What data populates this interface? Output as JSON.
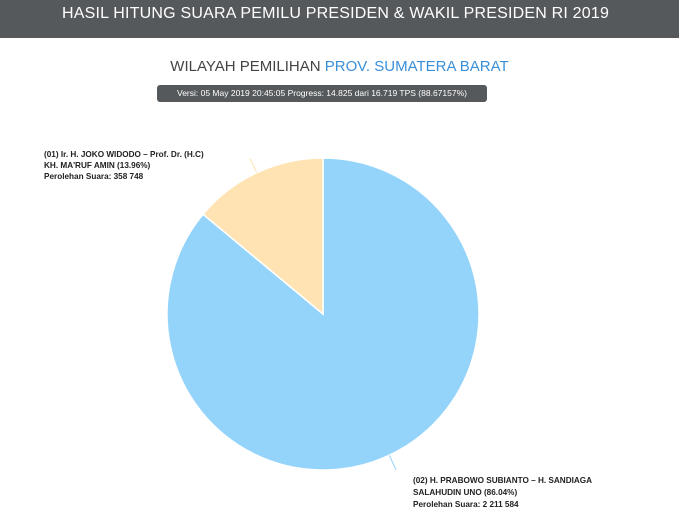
{
  "header": {
    "title": "HASIL HITUNG SUARA PEMILU PRESIDEN & WAKIL PRESIDEN RI 2019"
  },
  "region": {
    "prefix": "WILAYAH PEMILIHAN",
    "name": "PROV. SUMATERA BARAT"
  },
  "version_badge": "Versi: 05 May 2019 20:45:05 Progress: 14.825 dari 16.719 TPS (88.67157%)",
  "colors": {
    "header_bg": "#55595c",
    "region_accent": "#3a8fd9",
    "slice_01": "#ffe3b3",
    "slice_02": "#94d4fb"
  },
  "chart_data": {
    "type": "pie",
    "title": "",
    "start": "12 o'clock, clockwise",
    "slices": [
      {
        "candidate_no": "02",
        "label_lines": [
          "(02) H. PRABOWO SUBIANTO – H. SANDIAGA",
          "SALAHUDIN UNO (86.04%)",
          "Perolehan Suara: 2 211 584"
        ],
        "percent": 86.04,
        "votes": 2211584,
        "color": "#94d4fb"
      },
      {
        "candidate_no": "01",
        "label_lines": [
          "(01) Ir. H. JOKO WIDODO – Prof. Dr. (H.C)",
          "KH. MA'RUF AMIN (13.96%)",
          "Perolehan Suara: 358 748"
        ],
        "percent": 13.96,
        "votes": 358748,
        "color": "#ffe3b3"
      }
    ]
  }
}
